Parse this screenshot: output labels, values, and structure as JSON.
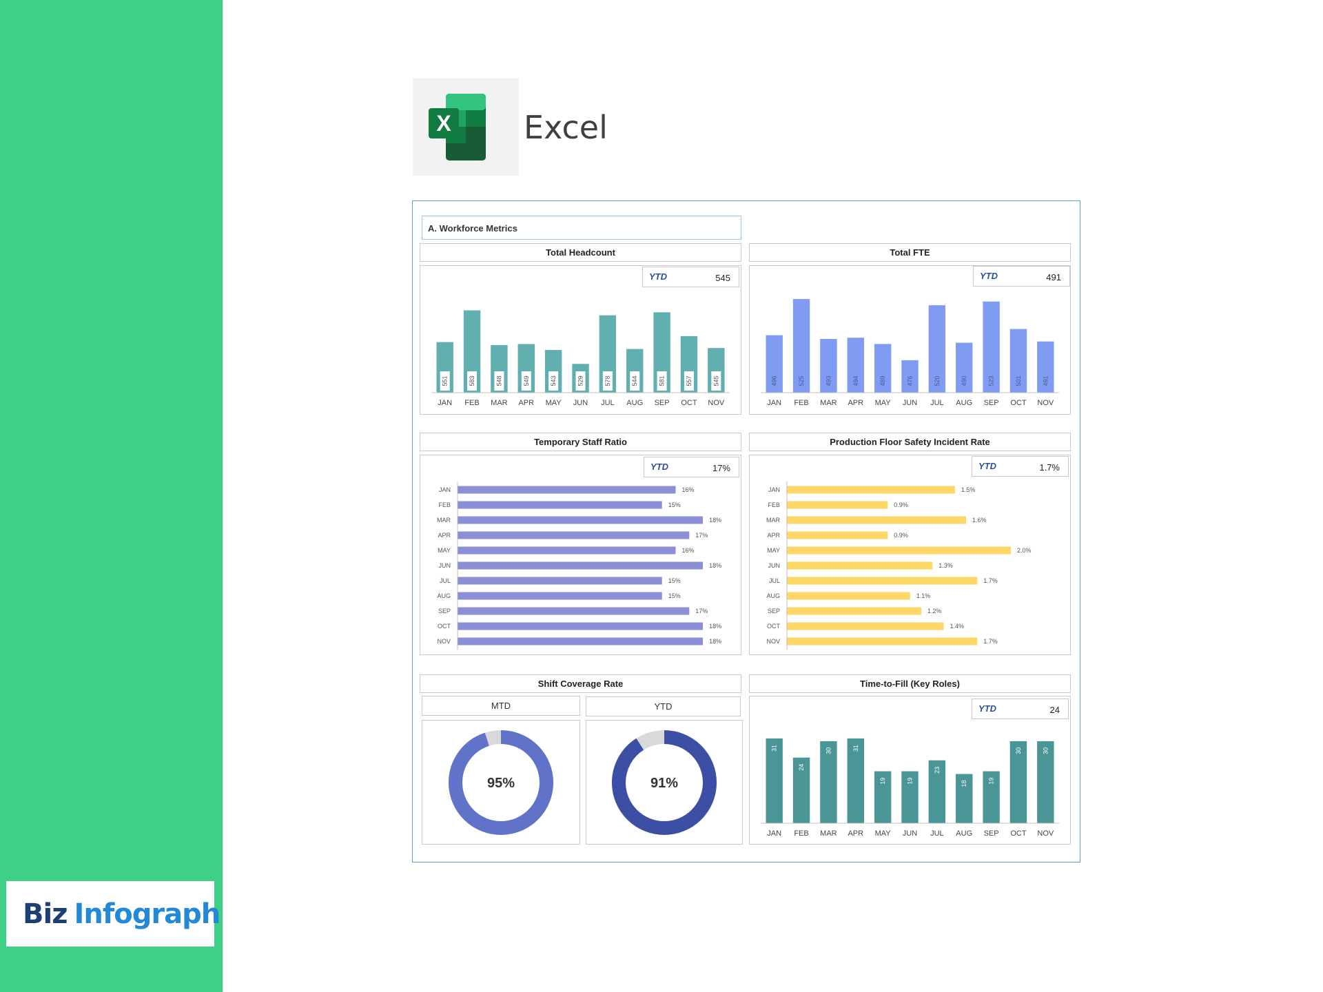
{
  "header": {
    "app_name": "Excel"
  },
  "brand": {
    "name_part1": "Biz",
    "name_part2": "Infograph"
  },
  "dashboard": {
    "section_title": "A. Workforce Metrics",
    "ytd_label": "YTD",
    "headcount": {
      "title": "Total Headcount",
      "ytd_value": "545"
    },
    "fte": {
      "title": "Total FTE",
      "ytd_value": "491"
    },
    "temp_ratio": {
      "title": "Temporary Staff Ratio",
      "ytd_value": "17%"
    },
    "safety": {
      "title": "Production Floor Safety Incident Rate",
      "ytd_value": "1.7%"
    },
    "coverage": {
      "title": "Shift Coverage Rate",
      "mtd_label": "MTD",
      "ytd_label": "YTD",
      "mtd_value": "95%",
      "ytd_value": "91%"
    },
    "ttf": {
      "title": "Time-to-Fill (Key Roles)",
      "ytd_value": "24"
    }
  },
  "colors": {
    "sidebar": "#3dd086",
    "teal": "#62afaf",
    "blue": "#7f9cf2",
    "purple": "#8b8fd6",
    "yellow": "#fcd765",
    "dark_teal": "#4a9696",
    "donut_mtd": "#6173c8",
    "donut_ytd": "#3d4ea5",
    "donut_rest": "#d9d9d9",
    "ytd_label": "#2e4d9b"
  },
  "chart_data": [
    {
      "id": "headcount",
      "type": "bar",
      "title": "Total Headcount",
      "categories": [
        "JAN",
        "FEB",
        "MAR",
        "APR",
        "MAY",
        "JUN",
        "JUL",
        "AUG",
        "SEP",
        "OCT",
        "NOV"
      ],
      "values": [
        551,
        583,
        548,
        549,
        543,
        529,
        578,
        544,
        581,
        557,
        545
      ],
      "ylim": [
        500,
        600
      ]
    },
    {
      "id": "fte",
      "type": "bar",
      "title": "Total FTE",
      "categories": [
        "JAN",
        "FEB",
        "MAR",
        "APR",
        "MAY",
        "JUN",
        "JUL",
        "AUG",
        "SEP",
        "OCT",
        "NOV"
      ],
      "values": [
        496,
        525,
        493,
        494,
        489,
        476,
        520,
        490,
        523,
        501,
        491
      ],
      "ylim": [
        450,
        530
      ]
    },
    {
      "id": "temp_ratio",
      "type": "bar",
      "orientation": "horizontal",
      "title": "Temporary Staff Ratio",
      "categories": [
        "JAN",
        "FEB",
        "MAR",
        "APR",
        "MAY",
        "JUN",
        "JUL",
        "AUG",
        "SEP",
        "OCT",
        "NOV"
      ],
      "values": [
        16,
        15,
        18,
        17,
        16,
        18,
        15,
        15,
        17,
        18,
        18
      ],
      "value_labels": [
        "16%",
        "15%",
        "18%",
        "17%",
        "16%",
        "18%",
        "15%",
        "15%",
        "17%",
        "18%",
        "18%"
      ]
    },
    {
      "id": "safety",
      "type": "bar",
      "orientation": "horizontal",
      "title": "Production Floor Safety Incident Rate",
      "categories": [
        "JAN",
        "FEB",
        "MAR",
        "APR",
        "MAY",
        "JUN",
        "JUL",
        "AUG",
        "SEP",
        "OCT",
        "NOV"
      ],
      "values": [
        1.5,
        0.9,
        1.6,
        0.9,
        2.0,
        1.3,
        1.7,
        1.1,
        1.2,
        1.4,
        1.7
      ],
      "value_labels": [
        "1.5%",
        "0.9%",
        "1.6%",
        "0.9%",
        "2.0%",
        "1.3%",
        "1.7%",
        "1.1%",
        "1.2%",
        "1.4%",
        "1.7%"
      ]
    },
    {
      "id": "coverage",
      "type": "pie",
      "title": "Shift Coverage Rate",
      "series": [
        {
          "name": "MTD",
          "values": [
            95,
            5
          ]
        },
        {
          "name": "YTD",
          "values": [
            91,
            9
          ]
        }
      ]
    },
    {
      "id": "ttf",
      "type": "bar",
      "title": "Time-to-Fill (Key Roles)",
      "categories": [
        "JAN",
        "FEB",
        "MAR",
        "APR",
        "MAY",
        "JUN",
        "JUL",
        "AUG",
        "SEP",
        "OCT",
        "NOV"
      ],
      "values": [
        31,
        24,
        30,
        31,
        19,
        19,
        23,
        18,
        19,
        30,
        30
      ],
      "ylim": [
        0,
        33
      ]
    }
  ]
}
